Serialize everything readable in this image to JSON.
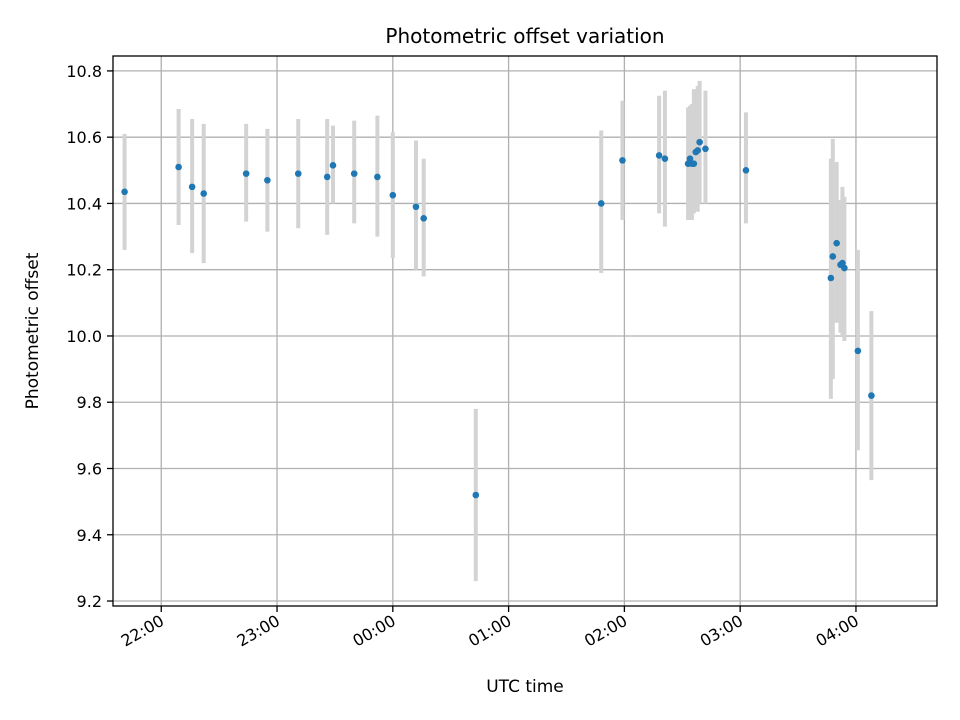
{
  "chart_data": {
    "type": "scatter",
    "title": "Photometric offset variation",
    "xlabel": "UTC time",
    "ylabel": "Photometric offset",
    "x_ticks": [
      "22:00",
      "23:00",
      "00:00",
      "01:00",
      "02:00",
      "03:00",
      "04:00"
    ],
    "y_ticks": [
      "9.2",
      "9.4",
      "9.6",
      "9.8",
      "10.0",
      "10.2",
      "10.4",
      "10.6",
      "10.8"
    ],
    "xlim": [
      "21:35",
      "04:42"
    ],
    "ylim": [
      9.185,
      10.845
    ],
    "grid": true,
    "colors": {
      "points": "#1f77b4",
      "error_bars": "#d3d3d3",
      "grid": "#b0b0b0"
    },
    "points": [
      {
        "t": "21:41",
        "y": 10.435,
        "lo": 10.26,
        "hi": 10.61
      },
      {
        "t": "22:09",
        "y": 10.51,
        "lo": 10.335,
        "hi": 10.685
      },
      {
        "t": "22:16",
        "y": 10.45,
        "lo": 10.25,
        "hi": 10.655
      },
      {
        "t": "22:22",
        "y": 10.43,
        "lo": 10.22,
        "hi": 10.64
      },
      {
        "t": "22:44",
        "y": 10.49,
        "lo": 10.345,
        "hi": 10.64
      },
      {
        "t": "22:55",
        "y": 10.47,
        "lo": 10.315,
        "hi": 10.625
      },
      {
        "t": "23:11",
        "y": 10.49,
        "lo": 10.325,
        "hi": 10.655
      },
      {
        "t": "23:26",
        "y": 10.48,
        "lo": 10.305,
        "hi": 10.655
      },
      {
        "t": "23:29",
        "y": 10.515,
        "lo": 10.4,
        "hi": 10.635
      },
      {
        "t": "23:40",
        "y": 10.49,
        "lo": 10.34,
        "hi": 10.65
      },
      {
        "t": "23:52",
        "y": 10.48,
        "lo": 10.3,
        "hi": 10.665
      },
      {
        "t": "00:00",
        "y": 10.425,
        "lo": 10.235,
        "hi": 10.615
      },
      {
        "t": "00:12",
        "y": 10.39,
        "lo": 10.2,
        "hi": 10.59
      },
      {
        "t": "00:16",
        "y": 10.355,
        "lo": 10.18,
        "hi": 10.535
      },
      {
        "t": "00:43",
        "y": 9.52,
        "lo": 9.26,
        "hi": 9.78
      },
      {
        "t": "01:48",
        "y": 10.4,
        "lo": 10.19,
        "hi": 10.62
      },
      {
        "t": "01:59",
        "y": 10.53,
        "lo": 10.35,
        "hi": 10.71
      },
      {
        "t": "02:18",
        "y": 10.545,
        "lo": 10.37,
        "hi": 10.725
      },
      {
        "t": "02:21",
        "y": 10.535,
        "lo": 10.33,
        "hi": 10.74
      },
      {
        "t": "02:33",
        "y": 10.52,
        "lo": 10.35,
        "hi": 10.69
      },
      {
        "t": "02:34",
        "y": 10.535,
        "lo": 10.36,
        "hi": 10.695
      },
      {
        "t": "02:35",
        "y": 10.52,
        "lo": 10.35,
        "hi": 10.7
      },
      {
        "t": "02:36",
        "y": 10.52,
        "lo": 10.37,
        "hi": 10.745
      },
      {
        "t": "02:37",
        "y": 10.555,
        "lo": 10.38,
        "hi": 10.74
      },
      {
        "t": "02:38",
        "y": 10.56,
        "lo": 10.375,
        "hi": 10.755
      },
      {
        "t": "02:39",
        "y": 10.585,
        "lo": 10.4,
        "hi": 10.77
      },
      {
        "t": "02:42",
        "y": 10.565,
        "lo": 10.4,
        "hi": 10.74
      },
      {
        "t": "03:03",
        "y": 10.5,
        "lo": 10.34,
        "hi": 10.675
      },
      {
        "t": "03:47",
        "y": 10.175,
        "lo": 9.81,
        "hi": 10.535
      },
      {
        "t": "03:48",
        "y": 10.24,
        "lo": 9.87,
        "hi": 10.595
      },
      {
        "t": "03:50",
        "y": 10.28,
        "lo": 10.04,
        "hi": 10.525
      },
      {
        "t": "03:52",
        "y": 10.215,
        "lo": 10.01,
        "hi": 10.41
      },
      {
        "t": "03:53",
        "y": 10.22,
        "lo": 10.0,
        "hi": 10.45
      },
      {
        "t": "03:54",
        "y": 10.205,
        "lo": 9.985,
        "hi": 10.42
      },
      {
        "t": "04:01",
        "y": 9.955,
        "lo": 9.655,
        "hi": 10.26
      },
      {
        "t": "04:08",
        "y": 9.82,
        "lo": 9.565,
        "hi": 10.075
      }
    ]
  }
}
